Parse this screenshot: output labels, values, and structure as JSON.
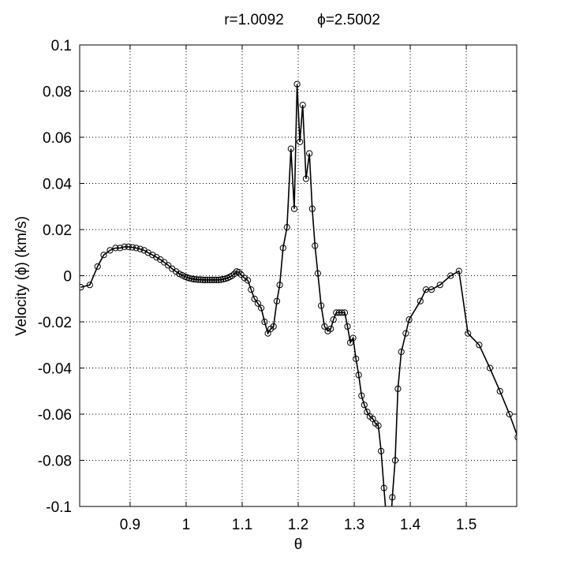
{
  "chart_data": {
    "type": "line",
    "title_r": "r=1.0092",
    "title_phi": "ϕ=2.5002",
    "xlabel": "θ",
    "ylabel": "Velocity (ϕ) (km/s)",
    "xlim": [
      0.81,
      1.59
    ],
    "ylim": [
      -0.1,
      0.1
    ],
    "xticks": [
      0.9,
      1.0,
      1.1,
      1.2,
      1.3,
      1.4,
      1.5
    ],
    "xtick_labels": [
      "0.9",
      "1",
      "1.1",
      "1.2",
      "1.3",
      "1.4",
      "1.5"
    ],
    "yticks": [
      0.1,
      0.08,
      0.06,
      0.04,
      0.02,
      0,
      -0.02,
      -0.04,
      -0.06,
      -0.08,
      -0.1
    ],
    "ytick_labels": [
      "0.1",
      "0.08",
      "0.06",
      "0.04",
      "0.02",
      "0",
      "-0.02",
      "-0.04",
      "-0.06",
      "-0.08",
      "-0.1"
    ],
    "grid": true,
    "line_color": "#000000",
    "marker": "circle",
    "x": [
      0.812,
      0.828,
      0.842,
      0.853,
      0.864,
      0.874,
      0.882,
      0.89,
      0.897,
      0.904,
      0.911,
      0.918,
      0.925,
      0.932,
      0.94,
      0.947,
      0.954,
      0.961,
      0.968,
      0.975,
      0.982,
      0.988,
      0.993,
      0.998,
      1.002,
      1.006,
      1.01,
      1.014,
      1.018,
      1.022,
      1.026,
      1.03,
      1.034,
      1.038,
      1.042,
      1.046,
      1.05,
      1.054,
      1.058,
      1.062,
      1.066,
      1.07,
      1.074,
      1.078,
      1.082,
      1.086,
      1.09,
      1.094,
      1.098,
      1.104,
      1.11,
      1.116,
      1.122,
      1.128,
      1.134,
      1.14,
      1.146,
      1.151,
      1.156,
      1.162,
      1.167,
      1.173,
      1.18,
      1.187,
      1.193,
      1.198,
      1.203,
      1.208,
      1.214,
      1.22,
      1.225,
      1.23,
      1.235,
      1.241,
      1.247,
      1.253,
      1.258,
      1.263,
      1.268,
      1.273,
      1.278,
      1.283,
      1.288,
      1.293,
      1.298,
      1.303,
      1.308,
      1.313,
      1.318,
      1.323,
      1.328,
      1.333,
      1.338,
      1.343,
      1.348,
      1.353,
      1.358,
      1.363,
      1.368,
      1.373,
      1.378,
      1.384,
      1.392,
      1.398,
      1.418,
      1.428,
      1.438,
      1.453,
      1.472,
      1.487,
      1.503,
      1.523,
      1.542,
      1.56,
      1.577,
      1.592
    ],
    "y": [
      -0.005,
      -0.004,
      0.004,
      0.009,
      0.011,
      0.012,
      0.012,
      0.0125,
      0.0125,
      0.0123,
      0.012,
      0.0116,
      0.011,
      0.01,
      0.009,
      0.008,
      0.007,
      0.0058,
      0.0045,
      0.003,
      0.0018,
      0.0008,
      0.0002,
      -0.0004,
      -0.0008,
      -0.0011,
      -0.0013,
      -0.0015,
      -0.0016,
      -0.0017,
      -0.0017,
      -0.0018,
      -0.0018,
      -0.0018,
      -0.0018,
      -0.0018,
      -0.0018,
      -0.0018,
      -0.0018,
      -0.0017,
      -0.0015,
      -0.0013,
      -0.001,
      -0.0005,
      0,
      0.0008,
      0.0018,
      0.0015,
      0.0005,
      -0.001,
      -0.002,
      -0.006,
      -0.01,
      -0.012,
      -0.014,
      -0.02,
      -0.025,
      -0.023,
      -0.022,
      -0.011,
      -0.004,
      0.012,
      0.021,
      0.055,
      0.029,
      0.083,
      0.058,
      0.074,
      0.042,
      0.053,
      0.029,
      0.013,
      0.001,
      -0.013,
      -0.022,
      -0.024,
      -0.023,
      -0.019,
      -0.016,
      -0.016,
      -0.016,
      -0.016,
      -0.022,
      -0.029,
      -0.027,
      -0.036,
      -0.043,
      -0.052,
      -0.056,
      -0.059,
      -0.061,
      -0.062,
      -0.064,
      -0.065,
      -0.076,
      -0.092,
      -0.107,
      -0.118,
      -0.096,
      -0.08,
      -0.049,
      -0.033,
      -0.025,
      -0.019,
      -0.011,
      -0.006,
      -0.006,
      -0.004,
      0,
      0.002,
      -0.025,
      -0.03,
      -0.04,
      -0.05,
      -0.06,
      -0.07
    ]
  }
}
